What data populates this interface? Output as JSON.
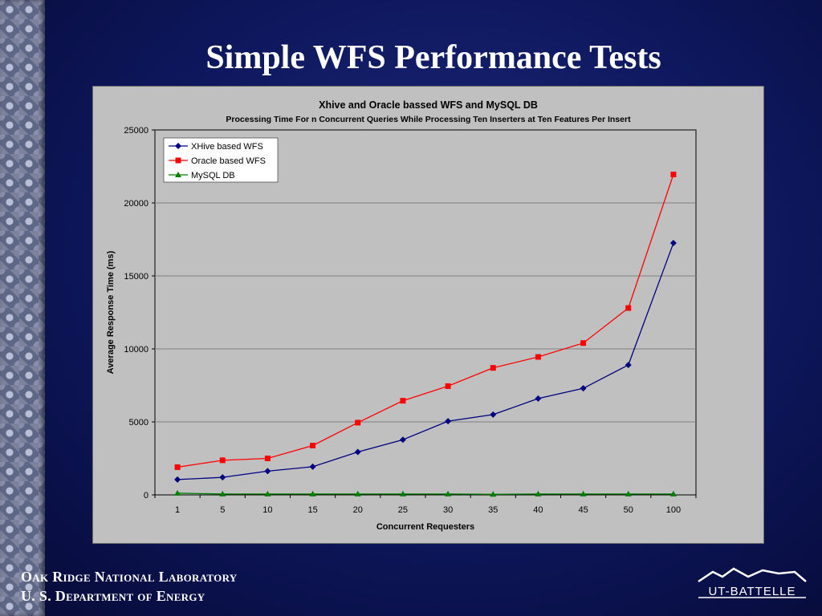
{
  "slide": {
    "title": "Simple WFS Performance Tests"
  },
  "footer": {
    "lab": "Oak Ridge National Laboratory",
    "doe": "U. S. Department of Energy",
    "logo_text": "UT-BATTELLE"
  },
  "colors": {
    "background": "#0d165a",
    "chart_background": "#c0c0c0",
    "xhive": "#000080",
    "oracle": "#ff0000",
    "mysql": "#008000"
  },
  "chart_data": {
    "type": "line",
    "title": "Xhive and Oracle bassed WFS and MySQL DB",
    "subtitle": "Processing Time For n Concurrent Queries While Processing Ten Inserters at Ten Features Per Insert",
    "xlabel": "Concurrent Requesters",
    "ylabel": "Average Response Time (ms)",
    "categories": [
      "1",
      "5",
      "10",
      "15",
      "20",
      "25",
      "30",
      "35",
      "40",
      "45",
      "50",
      "100"
    ],
    "ylim": [
      0,
      25000
    ],
    "yticks": [
      0,
      5000,
      10000,
      15000,
      20000,
      25000
    ],
    "grid": "horizontal",
    "legend_position": "top-left",
    "series": [
      {
        "name": "XHive based WFS",
        "color": "#000080",
        "marker": "diamond",
        "values": [
          1050,
          1200,
          1630,
          1930,
          2940,
          3780,
          5050,
          5500,
          6600,
          7300,
          8900,
          17250
        ]
      },
      {
        "name": "Oracle based WFS",
        "color": "#ff0000",
        "marker": "square",
        "values": [
          1900,
          2370,
          2500,
          3380,
          4950,
          6450,
          7450,
          8700,
          9450,
          10400,
          12800,
          21950
        ]
      },
      {
        "name": "MySQL DB",
        "color": "#008000",
        "marker": "triangle",
        "values": [
          120,
          60,
          60,
          60,
          60,
          60,
          60,
          40,
          60,
          60,
          60,
          60
        ]
      }
    ]
  }
}
